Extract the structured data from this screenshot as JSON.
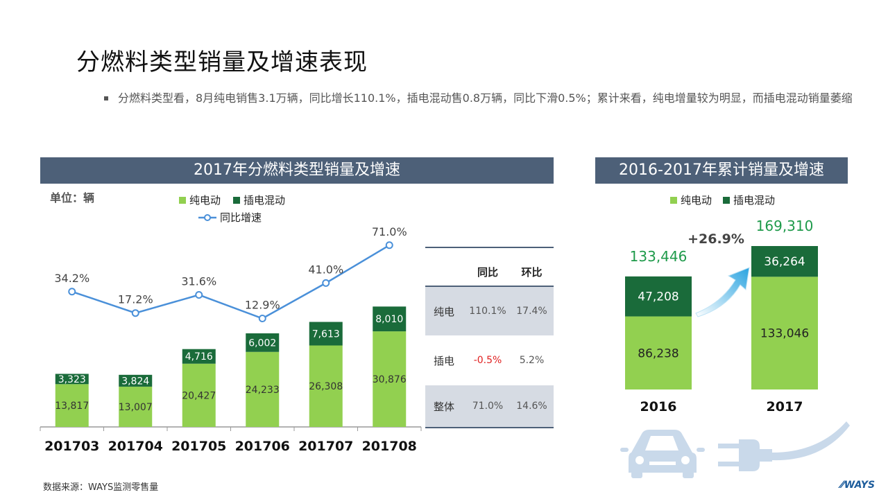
{
  "page": {
    "title": "分燃料类型销量及增速表现",
    "bullet": "分燃料类型看，8月纯电销售3.1万辆，同比增长110.1%，插电混动售0.8万辆，同比下滑0.5%；累计来看，纯电增量较为明显，而插电混动销量萎缩",
    "source": "数据来源：WAYS监测零售量",
    "logo_text": "WAYS"
  },
  "colors": {
    "ev": "#92d050",
    "phev": "#1a6b3a",
    "line": "#4a90d9",
    "header_bg": "#4d6078",
    "table_band": "#d6dbe3",
    "negative": "#e02020",
    "total_label": "#1e9a4a"
  },
  "icons": [
    "car-icon",
    "plug-icon",
    "growth-arrow-icon"
  ],
  "chart_data": [
    {
      "type": "bar",
      "stacked": true,
      "title": "2017年分燃料类型销量及增速",
      "unit_label": "单位：辆",
      "categories": [
        "201703",
        "201704",
        "201705",
        "201706",
        "201707",
        "201708"
      ],
      "series": [
        {
          "name": "纯电动",
          "values": [
            13817,
            13007,
            20427,
            24233,
            26308,
            30876
          ]
        },
        {
          "name": "插电混动",
          "values": [
            3323,
            3824,
            4716,
            6002,
            7613,
            8010
          ]
        }
      ],
      "line_series": {
        "name": "同比增速",
        "values": [
          34.2,
          17.2,
          31.6,
          12.9,
          41.0,
          71.0
        ],
        "labels": [
          "34.2%",
          "17.2%",
          "31.6%",
          "12.9%",
          "41.0%",
          "71.0%"
        ]
      },
      "legend_placement": "top-center",
      "ylim": [
        0,
        60000
      ]
    },
    {
      "type": "table",
      "columns": [
        "",
        "同比",
        "环比"
      ],
      "rows": [
        {
          "label": "纯电",
          "yoy": "110.1%",
          "mom": "17.4%"
        },
        {
          "label": "插电",
          "yoy": "-0.5%",
          "mom": "5.2%"
        },
        {
          "label": "整体",
          "yoy": "71.0%",
          "mom": "14.6%"
        }
      ]
    },
    {
      "type": "bar",
      "stacked": true,
      "title": "2016-2017年累计销量及增速",
      "categories": [
        "2016",
        "2017"
      ],
      "series": [
        {
          "name": "纯电动",
          "values": [
            86238,
            133046
          ]
        },
        {
          "name": "插电混动",
          "values": [
            47208,
            36264
          ]
        }
      ],
      "totals": [
        133446,
        169310
      ],
      "total_labels": [
        "133,446",
        "169,310"
      ],
      "growth_label": "+26.9%",
      "legend_placement": "top-center",
      "ylim": [
        0,
        190000
      ]
    }
  ]
}
